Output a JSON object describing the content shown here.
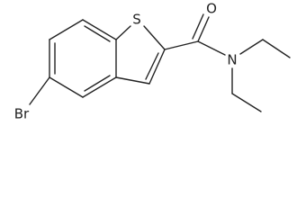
{
  "atoms": [
    {
      "label": "S"
    },
    {
      "label": "O"
    },
    {
      "label": "N"
    },
    {
      "label": "Br"
    }
  ]
}
